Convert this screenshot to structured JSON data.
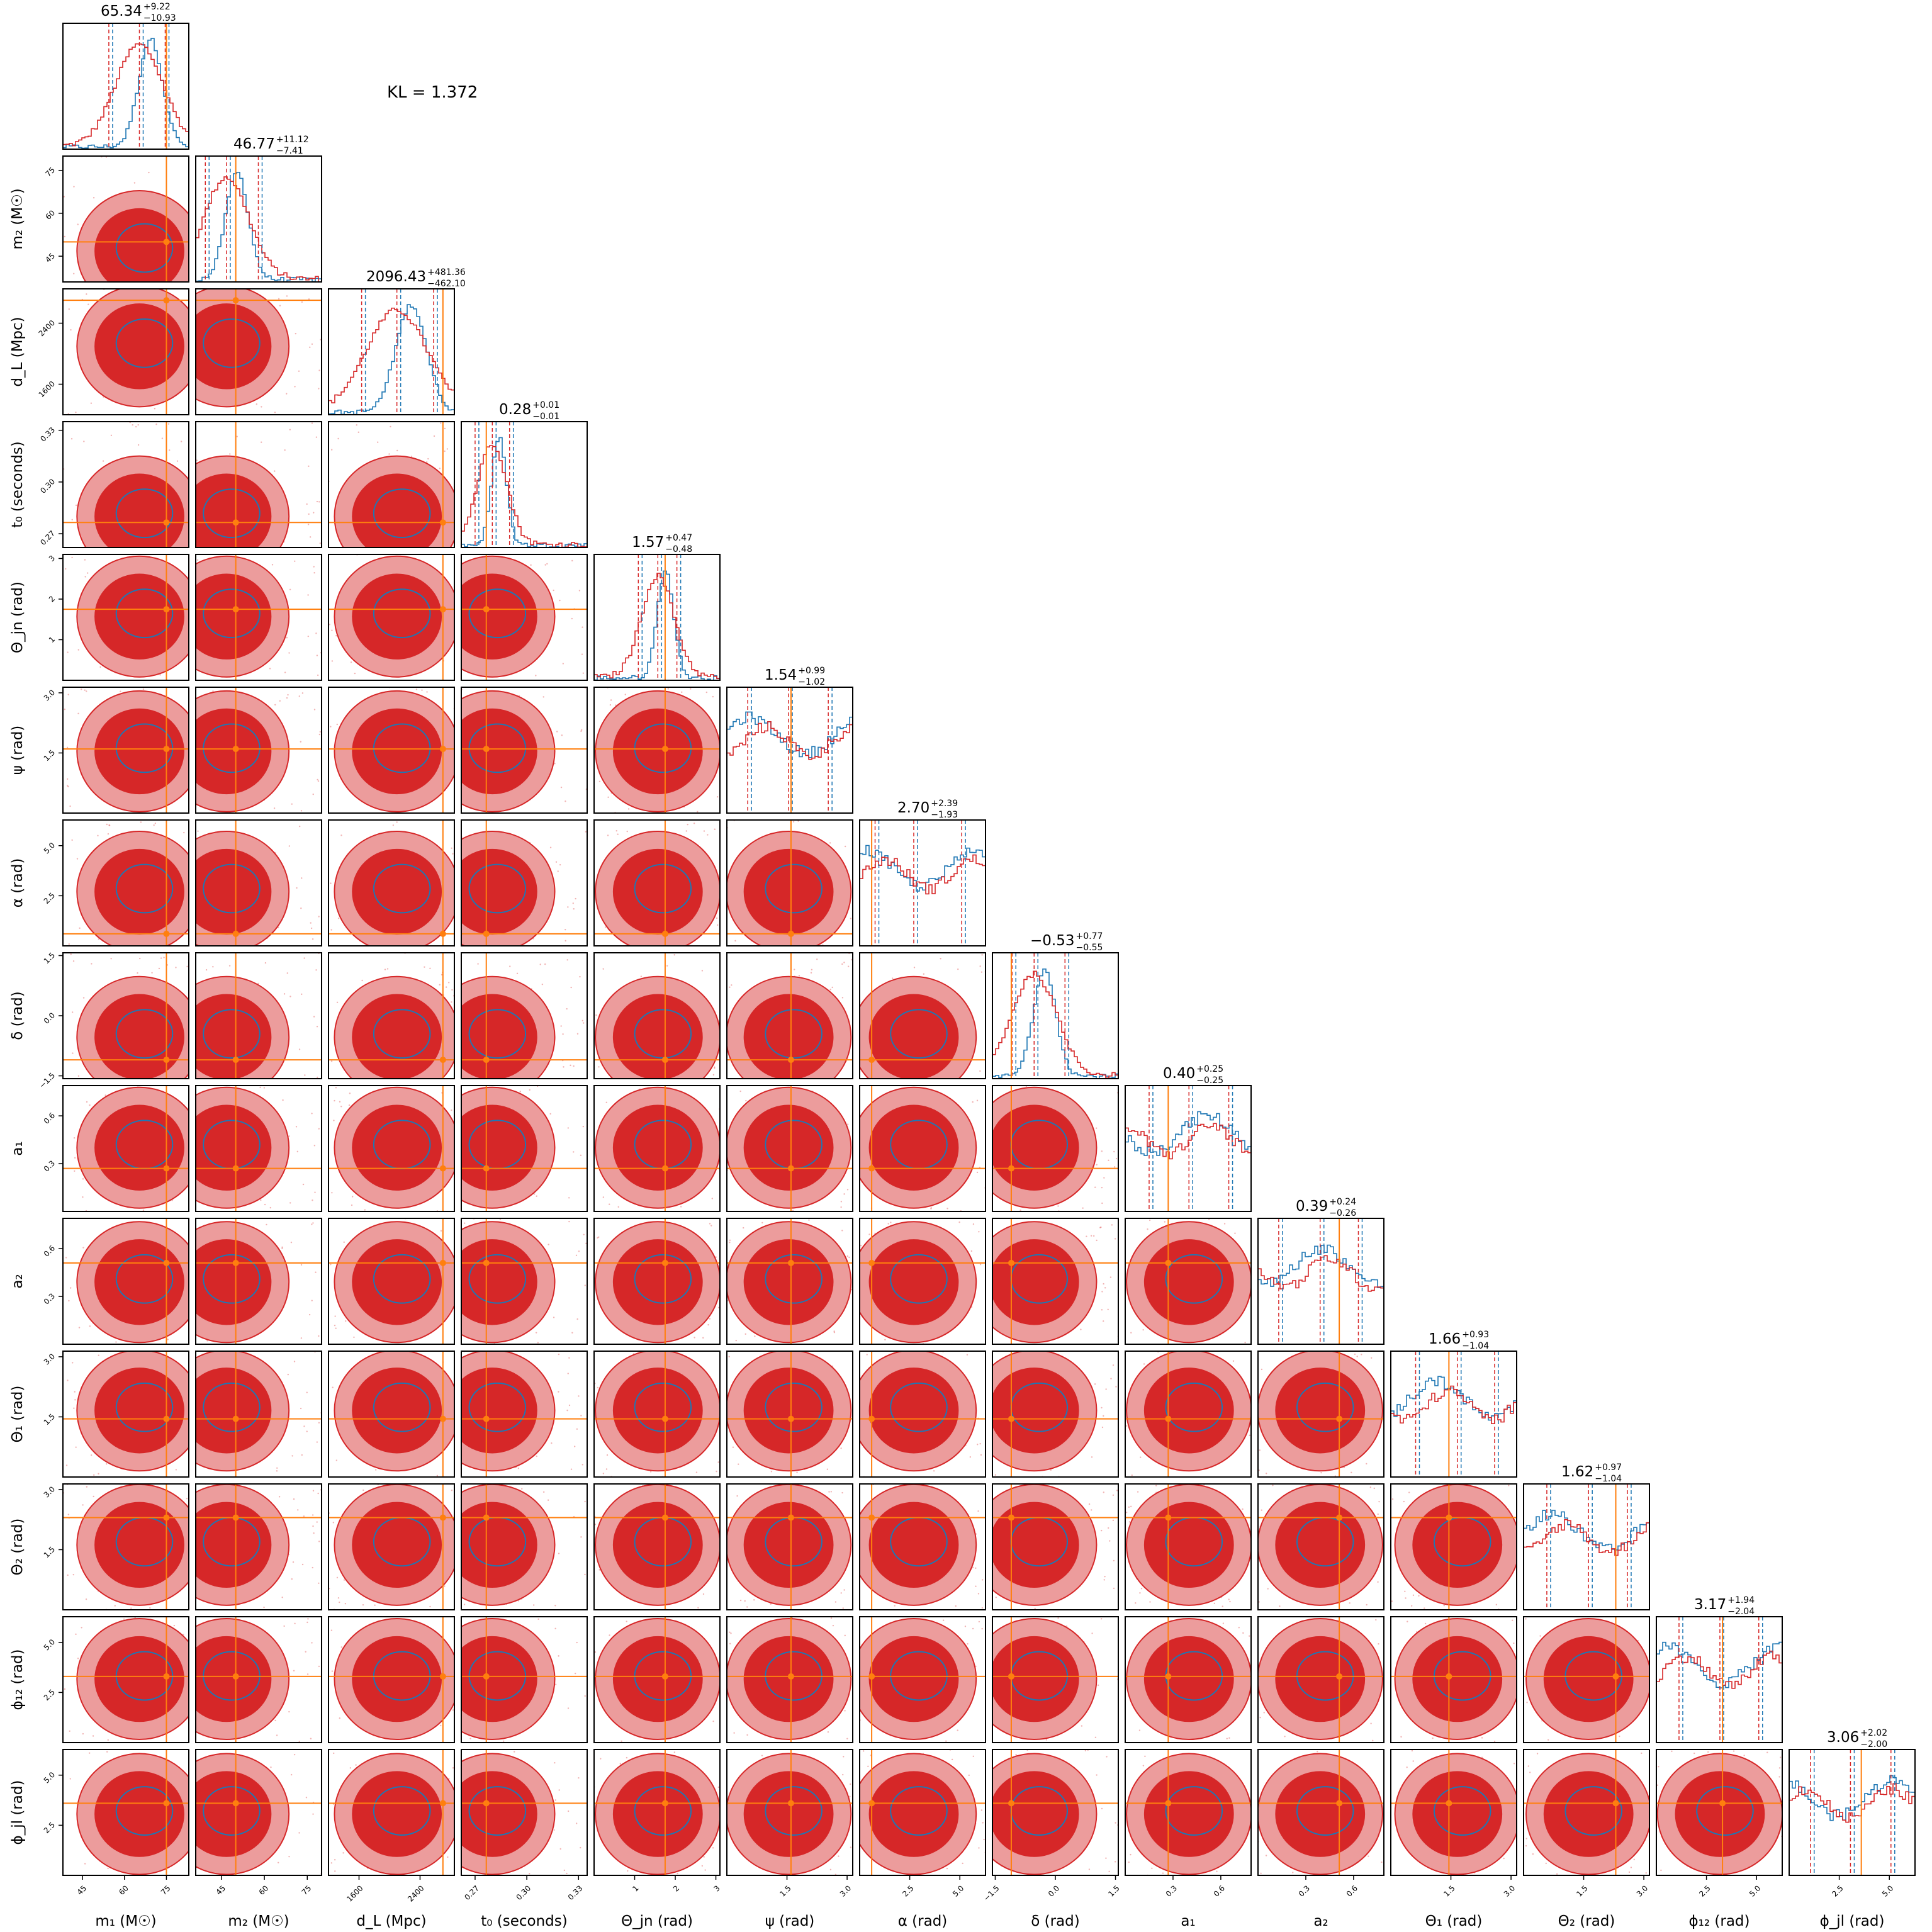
{
  "annotation": "KL = 1.372",
  "colors": {
    "red": "#d62728",
    "red_light": "#ec9c9c",
    "blue": "#1f77b4",
    "truth": "#ff7f0e"
  },
  "chart_data": {
    "type": "corner",
    "series": [
      {
        "name": "",
        "color": "#d62728"
      },
      {
        "name": "",
        "color": "#1f77b4"
      }
    ],
    "parameters": [
      {
        "key": "m1",
        "label": "m₁ (M☉)",
        "range": [
          38,
          83
        ],
        "ticks": [
          "45",
          "60",
          "75"
        ],
        "tick_values": [
          45,
          60,
          75
        ],
        "truth": 75,
        "median": 65.34,
        "plus": "+9.22",
        "minus": "−10.93",
        "title": "65.34"
      },
      {
        "key": "m2",
        "label": "m₂ (M☉)",
        "range": [
          36,
          80
        ],
        "ticks": [
          "45",
          "60",
          "75"
        ],
        "tick_values": [
          45,
          60,
          75
        ],
        "truth": 50,
        "median": 46.77,
        "plus": "+11.12",
        "minus": "−7.41",
        "title": "46.77"
      },
      {
        "key": "dL",
        "label": "d_L (Mpc)",
        "range": [
          1200,
          2850
        ],
        "ticks": [
          "1600",
          "2400"
        ],
        "tick_values": [
          1600,
          2400
        ],
        "truth": 2700,
        "median": 2096.43,
        "plus": "+481.36",
        "minus": "−462.10",
        "title": "2096.43"
      },
      {
        "key": "t0",
        "label": "t₀ (seconds)",
        "range": [
          0.262,
          0.335
        ],
        "ticks": [
          "0.27",
          "0.30",
          "0.33"
        ],
        "tick_values": [
          0.27,
          0.3,
          0.33
        ],
        "truth": 0.2765,
        "median": 0.28,
        "plus": "+0.01",
        "minus": "−0.01",
        "title": "0.28"
      },
      {
        "key": "theta_jn",
        "label": "Θ_jn (rad)",
        "range": [
          0,
          3.1
        ],
        "ticks": [
          "1",
          "2",
          "3"
        ],
        "tick_values": [
          1,
          2,
          3
        ],
        "truth": 1.75,
        "median": 1.57,
        "plus": "+0.47",
        "minus": "−0.48",
        "title": "1.57"
      },
      {
        "key": "psi",
        "label": "ψ (rad)",
        "range": [
          0,
          3.14
        ],
        "ticks": [
          "1.5",
          "3.0"
        ],
        "tick_values": [
          1.5,
          3.0
        ],
        "truth": 1.6,
        "median": 1.54,
        "plus": "+0.99",
        "minus": "−1.02",
        "title": "1.54"
      },
      {
        "key": "alpha",
        "label": "α (rad)",
        "range": [
          0,
          6.28
        ],
        "ticks": [
          "2.5",
          "5.0"
        ],
        "tick_values": [
          2.5,
          5.0
        ],
        "truth": 0.6,
        "median": 2.7,
        "plus": "+2.39",
        "minus": "−1.93",
        "title": "2.70"
      },
      {
        "key": "delta",
        "label": "δ (rad)",
        "range": [
          -1.57,
          1.57
        ],
        "ticks": [
          "−1.5",
          "0.0",
          "1.5"
        ],
        "tick_values": [
          -1.5,
          0.0,
          1.5
        ],
        "truth": -1.1,
        "median": -0.53,
        "plus": "+0.77",
        "minus": "−0.55",
        "title": "−0.53"
      },
      {
        "key": "a1",
        "label": "a₁",
        "range": [
          0,
          0.79
        ],
        "ticks": [
          "0.3",
          "0.6"
        ],
        "tick_values": [
          0.3,
          0.6
        ],
        "truth": 0.27,
        "median": 0.4,
        "plus": "+0.25",
        "minus": "−0.25",
        "title": "0.40"
      },
      {
        "key": "a2",
        "label": "a₂",
        "range": [
          0,
          0.79
        ],
        "ticks": [
          "0.3",
          "0.6"
        ],
        "tick_values": [
          0.3,
          0.6
        ],
        "truth": 0.51,
        "median": 0.39,
        "plus": "+0.24",
        "minus": "−0.26",
        "title": "0.39"
      },
      {
        "key": "theta1",
        "label": "Θ₁ (rad)",
        "range": [
          0,
          3.14
        ],
        "ticks": [
          "1.5",
          "3.0"
        ],
        "tick_values": [
          1.5,
          3.0
        ],
        "truth": 1.45,
        "median": 1.66,
        "plus": "+0.93",
        "minus": "−1.04",
        "title": "1.66"
      },
      {
        "key": "theta2",
        "label": "Θ₂ (rad)",
        "range": [
          0,
          3.14
        ],
        "ticks": [
          "1.5",
          "3.0"
        ],
        "tick_values": [
          1.5,
          3.0
        ],
        "truth": 2.3,
        "median": 1.62,
        "plus": "+0.97",
        "minus": "−1.04",
        "title": "1.62"
      },
      {
        "key": "phi12",
        "label": "ϕ₁₂ (rad)",
        "range": [
          0,
          6.28
        ],
        "ticks": [
          "2.5",
          "5.0"
        ],
        "tick_values": [
          2.5,
          5.0
        ],
        "truth": 3.3,
        "median": 3.17,
        "plus": "+1.94",
        "minus": "−2.04",
        "title": "3.17"
      },
      {
        "key": "phi_jl",
        "label": "ϕ_jl (rad)",
        "range": [
          0,
          6.28
        ],
        "ticks": [
          "2.5",
          "5.0"
        ],
        "tick_values": [
          2.5,
          5.0
        ],
        "truth": 3.6,
        "median": 3.06,
        "plus": "+2.02",
        "minus": "−2.00",
        "title": "3.06"
      }
    ]
  }
}
